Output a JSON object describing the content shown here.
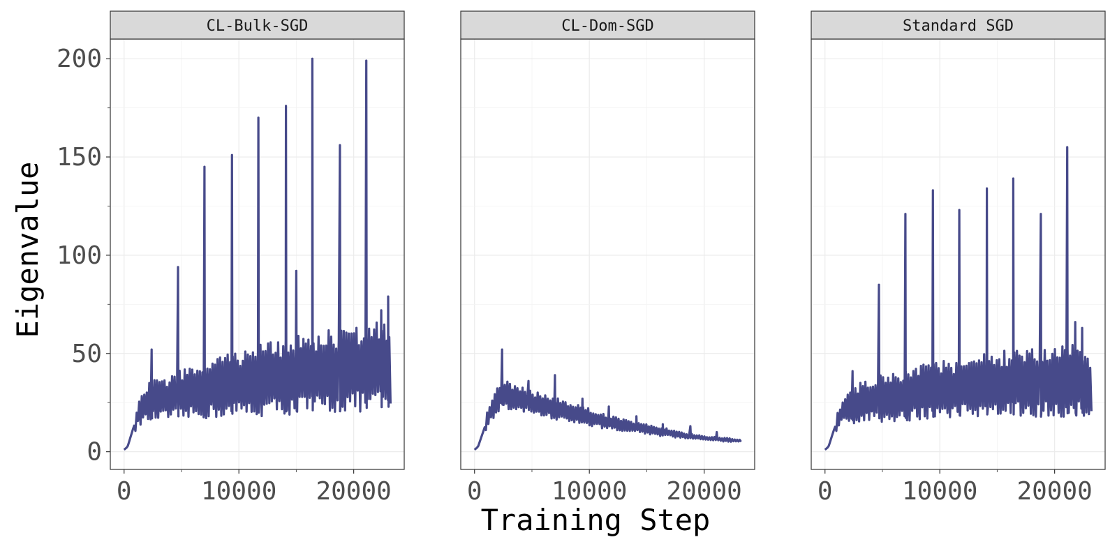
{
  "chart_data": {
    "type": "line",
    "xlabel": "Training Step",
    "ylabel": "Eigenvalue",
    "xlim": [
      -1200,
      24400
    ],
    "ylim": [
      -9,
      210
    ],
    "x_ticks": [
      0,
      10000,
      20000
    ],
    "x_tick_labels": [
      "0",
      "10000",
      "20000"
    ],
    "y_ticks": [
      0,
      50,
      100,
      150,
      200
    ],
    "y_tick_labels": [
      "0",
      "50",
      "100",
      "150",
      "200"
    ],
    "grid": true,
    "line_color": "#474A8A",
    "panels": [
      {
        "title": "CL-Bulk-SGD",
        "x_end": 23300,
        "band_low": [
          [
            0,
            1
          ],
          [
            300,
            2
          ],
          [
            800,
            8
          ],
          [
            1200,
            13
          ],
          [
            1800,
            15
          ],
          [
            2400,
            15
          ],
          [
            3000,
            16
          ],
          [
            5000,
            16
          ],
          [
            8000,
            17
          ],
          [
            12000,
            18
          ],
          [
            16000,
            19
          ],
          [
            20000,
            20
          ],
          [
            23300,
            21
          ]
        ],
        "band_high": [
          [
            0,
            1
          ],
          [
            300,
            3
          ],
          [
            800,
            16
          ],
          [
            1200,
            24
          ],
          [
            1800,
            32
          ],
          [
            2400,
            38
          ],
          [
            3000,
            36
          ],
          [
            5000,
            42
          ],
          [
            8000,
            48
          ],
          [
            10000,
            52
          ],
          [
            12000,
            55
          ],
          [
            14000,
            58
          ],
          [
            16000,
            60
          ],
          [
            18000,
            62
          ],
          [
            20000,
            64
          ],
          [
            22000,
            66
          ],
          [
            23300,
            67
          ]
        ],
        "spikes": [
          [
            2400,
            52
          ],
          [
            4700,
            94
          ],
          [
            7000,
            145
          ],
          [
            9400,
            151
          ],
          [
            11700,
            170
          ],
          [
            14100,
            176
          ],
          [
            15000,
            92
          ],
          [
            16400,
            200
          ],
          [
            18800,
            156
          ],
          [
            21100,
            199
          ],
          [
            22400,
            72
          ],
          [
            23000,
            79
          ]
        ]
      },
      {
        "title": "CL-Dom-SGD",
        "x_end": 23300,
        "band_low": [
          [
            0,
            1
          ],
          [
            300,
            2
          ],
          [
            800,
            8
          ],
          [
            1200,
            14
          ],
          [
            1800,
            17
          ],
          [
            2400,
            22
          ],
          [
            3000,
            21
          ],
          [
            5000,
            19
          ],
          [
            8000,
            15
          ],
          [
            10000,
            13
          ],
          [
            12000,
            11
          ],
          [
            14000,
            10
          ],
          [
            16000,
            8
          ],
          [
            18000,
            7
          ],
          [
            20000,
            6
          ],
          [
            22000,
            5
          ],
          [
            23300,
            5
          ]
        ],
        "band_high": [
          [
            0,
            1
          ],
          [
            300,
            3
          ],
          [
            800,
            14
          ],
          [
            1200,
            22
          ],
          [
            1800,
            30
          ],
          [
            2400,
            38
          ],
          [
            3000,
            35
          ],
          [
            5000,
            31
          ],
          [
            8000,
            26
          ],
          [
            10000,
            22
          ],
          [
            12000,
            18
          ],
          [
            14000,
            15
          ],
          [
            16000,
            13
          ],
          [
            18000,
            10
          ],
          [
            20000,
            8
          ],
          [
            22000,
            7
          ],
          [
            23300,
            6
          ]
        ],
        "spikes": [
          [
            2400,
            52
          ],
          [
            4700,
            36
          ],
          [
            7000,
            39
          ],
          [
            9400,
            27
          ],
          [
            11700,
            23
          ],
          [
            14100,
            18
          ],
          [
            16400,
            14
          ],
          [
            18800,
            13
          ],
          [
            21100,
            10
          ]
        ]
      },
      {
        "title": "Standard SGD",
        "x_end": 23300,
        "band_low": [
          [
            0,
            1
          ],
          [
            300,
            2
          ],
          [
            800,
            8
          ],
          [
            1200,
            13
          ],
          [
            1800,
            15
          ],
          [
            2400,
            14
          ],
          [
            3000,
            15
          ],
          [
            6000,
            15
          ],
          [
            10000,
            16
          ],
          [
            14000,
            17
          ],
          [
            18000,
            17
          ],
          [
            23300,
            18
          ]
        ],
        "band_high": [
          [
            0,
            1
          ],
          [
            300,
            3
          ],
          [
            800,
            15
          ],
          [
            1200,
            22
          ],
          [
            1800,
            29
          ],
          [
            2400,
            33
          ],
          [
            3000,
            35
          ],
          [
            5000,
            40
          ],
          [
            8000,
            44
          ],
          [
            10000,
            46
          ],
          [
            14000,
            50
          ],
          [
            18000,
            54
          ],
          [
            21000,
            57
          ],
          [
            23300,
            50
          ]
        ],
        "spikes": [
          [
            2400,
            41
          ],
          [
            4700,
            85
          ],
          [
            7000,
            121
          ],
          [
            9400,
            133
          ],
          [
            11700,
            123
          ],
          [
            14100,
            134
          ],
          [
            16400,
            139
          ],
          [
            18800,
            121
          ],
          [
            21100,
            155
          ],
          [
            21800,
            66
          ],
          [
            22400,
            63
          ]
        ]
      }
    ]
  }
}
